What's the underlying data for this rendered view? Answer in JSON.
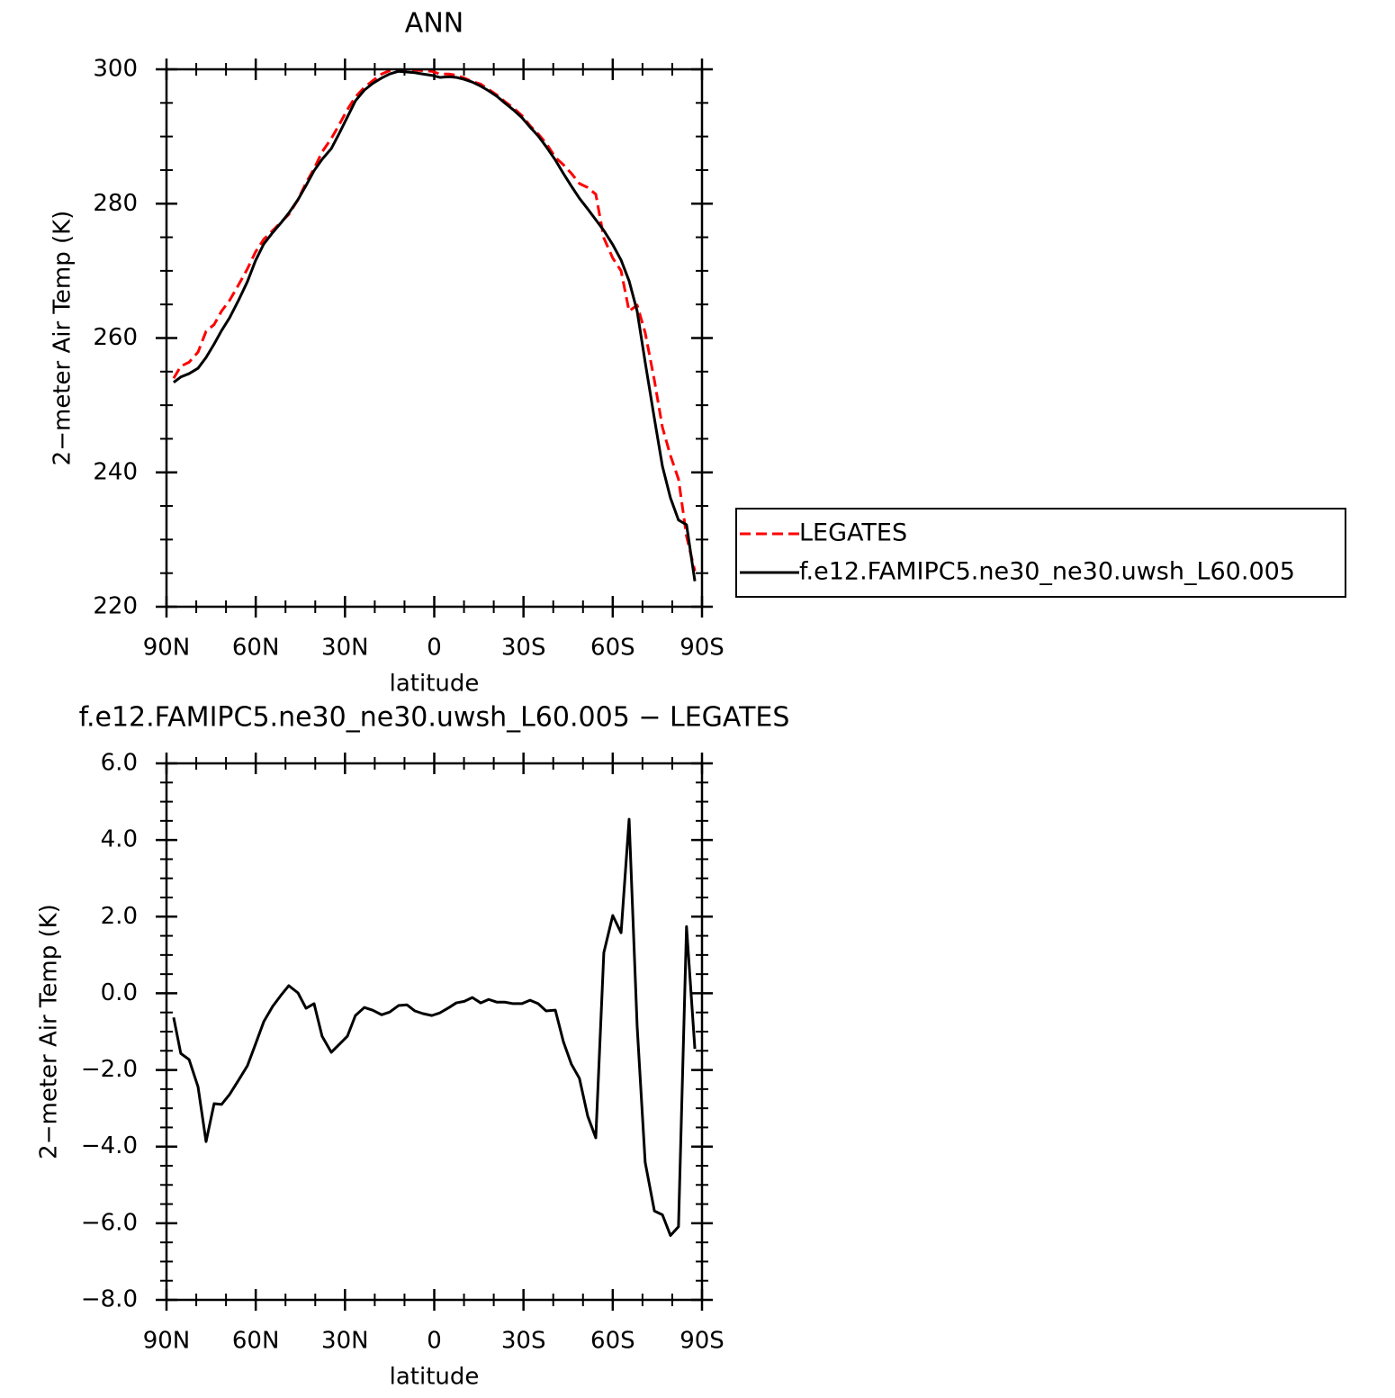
{
  "chart_data": [
    {
      "type": "line",
      "title": "ANN",
      "x_label": "latitude",
      "y_label": "2−meter Air Temp (K)",
      "x": [
        87.6,
        85.2,
        82.4,
        79.4,
        76.7,
        74.0,
        71.5,
        68.8,
        65.8,
        62.8,
        60.1,
        57.3,
        54.3,
        51.6,
        48.9,
        45.8,
        43.1,
        40.4,
        37.7,
        34.6,
        31.9,
        29.2,
        26.5,
        23.5,
        20.7,
        17.7,
        15.0,
        12.0,
        9.2,
        6.5,
        3.8,
        0.8,
        -1.9,
        -5.0,
        -7.4,
        -10.1,
        -12.8,
        -15.6,
        -18.3,
        -21.0,
        -23.7,
        -26.5,
        -29.5,
        -32.2,
        -34.9,
        -37.6,
        -40.7,
        -43.4,
        -46.1,
        -48.8,
        -51.6,
        -54.3,
        -57.0,
        -60.0,
        -62.8,
        -65.5,
        -68.2,
        -70.9,
        -74.0,
        -76.7,
        -79.4,
        -82.1,
        -84.8,
        -87.6
      ],
      "series": [
        {
          "name": "LEGATES",
          "color": "#ff0000",
          "dash": "dashed",
          "values": [
            254.0,
            255.8,
            256.4,
            257.9,
            261.0,
            262.0,
            264.0,
            265.6,
            267.9,
            270.3,
            272.8,
            274.7,
            276.0,
            277.2,
            278.4,
            280.6,
            283.1,
            285.2,
            287.7,
            289.7,
            291.8,
            294.0,
            295.9,
            297.3,
            298.3,
            299.3,
            299.8,
            299.9,
            299.9,
            299.9,
            299.8,
            299.7,
            299.3,
            299.3,
            299.1,
            298.7,
            298.2,
            297.8,
            297.0,
            296.2,
            295.2,
            294.3,
            293.1,
            291.6,
            290.4,
            289.0,
            286.9,
            285.8,
            284.5,
            283.0,
            282.4,
            281.4,
            274.9,
            271.9,
            270.0,
            264.0,
            264.9,
            260.8,
            253.7,
            246.7,
            242.5,
            239.0,
            230.5,
            225.3
          ]
        },
        {
          "name": "f.e12.FAMIPC5.ne30_ne30.uwsh_L60.005",
          "color": "#000000",
          "dash": "solid",
          "values": [
            253.4,
            254.2,
            254.7,
            255.5,
            257.1,
            259.1,
            261.1,
            263.0,
            265.6,
            268.4,
            271.5,
            274.0,
            275.7,
            277.1,
            278.6,
            280.6,
            282.7,
            284.9,
            286.6,
            288.2,
            290.5,
            292.9,
            295.3,
            296.9,
            297.9,
            298.7,
            299.3,
            299.7,
            299.6,
            299.5,
            299.3,
            299.1,
            298.8,
            298.9,
            298.8,
            298.5,
            298.1,
            297.5,
            296.8,
            296.0,
            295.0,
            294.0,
            292.8,
            291.4,
            290.1,
            288.5,
            286.5,
            284.5,
            282.6,
            280.8,
            279.2,
            277.6,
            276.0,
            273.9,
            271.6,
            268.5,
            264.0,
            256.4,
            248.0,
            240.9,
            236.2,
            232.9,
            232.2,
            223.8
          ]
        }
      ],
      "xlim": [
        90,
        -90
      ],
      "xticks": [
        {
          "value": 90,
          "label": "90N"
        },
        {
          "value": 60,
          "label": "60N"
        },
        {
          "value": 30,
          "label": "30N"
        },
        0,
        {
          "value": -30,
          "label": "30S"
        },
        {
          "value": -60,
          "label": "60S"
        },
        {
          "value": -90,
          "label": "90S"
        }
      ],
      "ylim": [
        220,
        300
      ],
      "yticks": [
        220,
        240,
        260,
        280,
        300
      ],
      "legend": "right"
    },
    {
      "type": "line",
      "title": "f.e12.FAMIPC5.ne30_ne30.uwsh_L60.005 − LEGATES",
      "x_label": "latitude",
      "y_label": "2−meter Air Temp (K)",
      "x": [
        87.6,
        85.2,
        82.4,
        79.4,
        76.7,
        74.0,
        71.5,
        68.8,
        65.8,
        62.8,
        60.1,
        57.3,
        54.3,
        51.6,
        48.9,
        45.8,
        43.1,
        40.4,
        37.7,
        34.6,
        31.9,
        29.2,
        26.5,
        23.5,
        20.7,
        17.7,
        15.0,
        12.0,
        9.2,
        6.5,
        3.8,
        0.8,
        -1.9,
        -5.0,
        -7.4,
        -10.1,
        -12.8,
        -15.6,
        -18.3,
        -21.0,
        -23.7,
        -26.5,
        -29.5,
        -32.2,
        -34.9,
        -37.6,
        -40.7,
        -43.4,
        -46.1,
        -48.8,
        -51.6,
        -54.3,
        -57.0,
        -60.0,
        -62.8,
        -65.5,
        -68.2,
        -70.9,
        -74.0,
        -76.7,
        -79.4,
        -82.1,
        -84.8,
        -87.6
      ],
      "series": [
        {
          "color": "#000000",
          "dash": "solid",
          "values": [
            -0.63,
            -1.57,
            -1.73,
            -2.44,
            -3.87,
            -2.88,
            -2.9,
            -2.64,
            -2.27,
            -1.89,
            -1.33,
            -0.74,
            -0.34,
            -0.06,
            0.2,
            0.01,
            -0.39,
            -0.27,
            -1.12,
            -1.54,
            -1.33,
            -1.12,
            -0.58,
            -0.37,
            -0.44,
            -0.56,
            -0.49,
            -0.32,
            -0.3,
            -0.46,
            -0.53,
            -0.58,
            -0.51,
            -0.37,
            -0.25,
            -0.21,
            -0.11,
            -0.25,
            -0.16,
            -0.23,
            -0.23,
            -0.27,
            -0.27,
            -0.18,
            -0.27,
            -0.46,
            -0.44,
            -1.26,
            -1.85,
            -2.22,
            -3.21,
            -3.77,
            1.06,
            2.03,
            1.58,
            4.54,
            -0.86,
            -4.41,
            -5.68,
            -5.78,
            -6.32,
            -6.09,
            1.74,
            -1.45
          ]
        }
      ],
      "xlim": [
        90,
        -90
      ],
      "xticks": [
        {
          "value": 90,
          "label": "90N"
        },
        {
          "value": 60,
          "label": "60N"
        },
        {
          "value": 30,
          "label": "30N"
        },
        0,
        {
          "value": -30,
          "label": "30S"
        },
        {
          "value": -60,
          "label": "60S"
        },
        {
          "value": -90,
          "label": "90S"
        }
      ],
      "ylim": [
        -8,
        6
      ],
      "yticks": [
        {
          "value": -8,
          "label": "−8.0"
        },
        {
          "value": -6,
          "label": "−6.0"
        },
        {
          "value": -4,
          "label": "−4.0"
        },
        {
          "value": -2,
          "label": "−2.0"
        },
        {
          "value": 0,
          "label": "0.0"
        },
        {
          "value": 2,
          "label": "2.0"
        },
        {
          "value": 4,
          "label": "4.0"
        },
        {
          "value": 6,
          "label": "6.0"
        }
      ]
    }
  ]
}
